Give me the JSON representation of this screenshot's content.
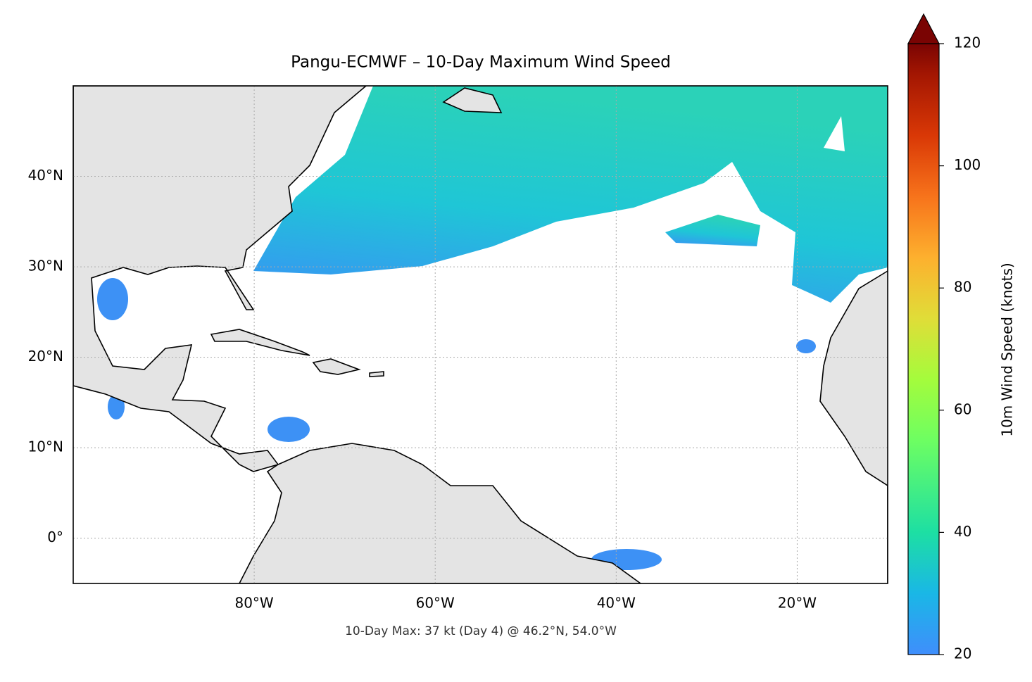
{
  "title": "Pangu-ECMWF – 10-Day Maximum Wind Speed",
  "xlim": [
    -100,
    -10
  ],
  "ylim": [
    -5,
    50
  ],
  "xticks": [
    {
      "value": -80,
      "label": "80°W"
    },
    {
      "value": -60,
      "label": "60°W"
    },
    {
      "value": -40,
      "label": "40°W"
    },
    {
      "value": -20,
      "label": "20°W"
    }
  ],
  "yticks": [
    {
      "value": 0,
      "label": "0°"
    },
    {
      "value": 10,
      "label": "10°N"
    },
    {
      "value": 20,
      "label": "20°N"
    },
    {
      "value": 30,
      "label": "30°N"
    },
    {
      "value": 40,
      "label": "40°N"
    }
  ],
  "colorbar": {
    "label": "10m Wind Speed (knots)",
    "lim": [
      20,
      120
    ],
    "ticks": [
      20,
      40,
      60,
      80,
      100,
      120
    ]
  },
  "annotation": "10-Day Max: 37 kt (Day 4) @ 46.2°N, 54.0°W"
}
